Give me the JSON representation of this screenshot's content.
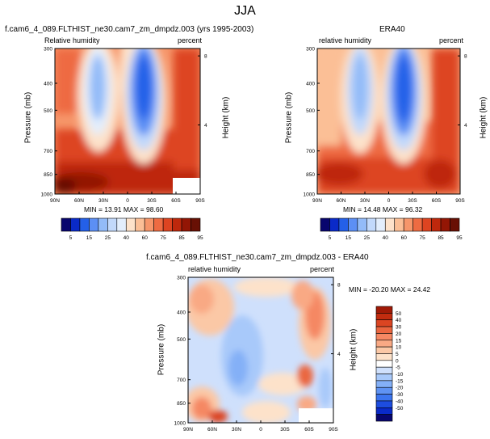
{
  "figure": {
    "title": "JJA"
  },
  "colors": {
    "rh_palette": [
      "#08066e",
      "#0a2ac8",
      "#2460e8",
      "#5c8ff4",
      "#93bbf8",
      "#c2d9fb",
      "#e3eefc",
      "#fde2ca",
      "#fbbf96",
      "#f6966a",
      "#ee6b42",
      "#dd4421",
      "#be280c",
      "#931605",
      "#681004"
    ],
    "diff_palette": [
      "#08066e",
      "#0a2ac8",
      "#1d4ddf",
      "#3c75ef",
      "#5f93f3",
      "#84b0f7",
      "#a8c9fa",
      "#cfe0fc",
      "#ffffff",
      "#fde2ca",
      "#fbc8a6",
      "#f9a984",
      "#f58863",
      "#ea6640",
      "#db4522",
      "#c22c0f",
      "#a11a06"
    ]
  },
  "chart_data": [
    {
      "type": "heatmap",
      "title": "f.cam6_4_089.FLTHIST_ne30.cam7_zm_dmpdz.003 (yrs 1995-2003)",
      "left_label": "Relative humidity",
      "right_label": "percent",
      "xlabel": "",
      "ylabel": "Pressure (mb)",
      "y2label": "Height (km)",
      "x_ticks": [
        "90N",
        "60N",
        "30N",
        "0",
        "30S",
        "60S",
        "90S"
      ],
      "y_ticks": [
        "300",
        "400",
        "500",
        "700",
        "850",
        "1000"
      ],
      "y2_ticks": [
        "8",
        "4"
      ],
      "xlim": [
        "90N",
        "90S"
      ],
      "ylim": [
        1000,
        300
      ],
      "stats": "MIN = 13.91  MAX = 98.60",
      "levels": [
        5,
        10,
        15,
        20,
        25,
        30,
        40,
        50,
        60,
        65,
        70,
        75,
        80,
        85,
        90,
        95
      ],
      "colorbar_labels": [
        "5",
        "15",
        "25",
        "40",
        "60",
        "75",
        "85",
        "95"
      ]
    },
    {
      "type": "heatmap",
      "title": "ERA40",
      "left_label": "relative humidity",
      "right_label": "percent",
      "xlabel": "",
      "ylabel": "Pressure (mb)",
      "y2label": "Height (km)",
      "x_ticks": [
        "90N",
        "60N",
        "30N",
        "0",
        "30S",
        "60S",
        "90S"
      ],
      "y_ticks": [
        "300",
        "400",
        "500",
        "700",
        "850",
        "1000"
      ],
      "y2_ticks": [
        "8",
        "4"
      ],
      "xlim": [
        "90N",
        "90S"
      ],
      "ylim": [
        1000,
        300
      ],
      "stats": "MIN = 14.48  MAX = 96.32",
      "levels": [
        5,
        10,
        15,
        20,
        25,
        30,
        40,
        50,
        60,
        65,
        70,
        75,
        80,
        85,
        90,
        95
      ],
      "colorbar_labels": [
        "5",
        "15",
        "25",
        "40",
        "60",
        "75",
        "85",
        "95"
      ]
    },
    {
      "type": "heatmap",
      "title": "f.cam6_4_089.FLTHIST_ne30.cam7_zm_dmpdz.003 - ERA40",
      "left_label": "relative humidity",
      "right_label": "percent",
      "xlabel": "",
      "ylabel": "Pressure (mb)",
      "y2label": "Height (km)",
      "x_ticks": [
        "90N",
        "60N",
        "30N",
        "0",
        "30S",
        "60S",
        "90S"
      ],
      "y_ticks": [
        "300",
        "400",
        "500",
        "700",
        "850",
        "1000"
      ],
      "y2_ticks": [
        "8",
        "4"
      ],
      "xlim": [
        "90N",
        "90S"
      ],
      "ylim": [
        1000,
        300
      ],
      "stats": "MIN = -20.20  MAX = 24.42",
      "levels": [
        -50,
        -40,
        -30,
        -20,
        -15,
        -10,
        -5,
        0,
        5,
        10,
        15,
        20,
        30,
        40,
        50
      ],
      "colorbar_labels": [
        "50",
        "40",
        "30",
        "20",
        "15",
        "10",
        "5",
        "0",
        "-5",
        "-10",
        "-15",
        "-20",
        "-30",
        "-40",
        "-50"
      ]
    }
  ]
}
